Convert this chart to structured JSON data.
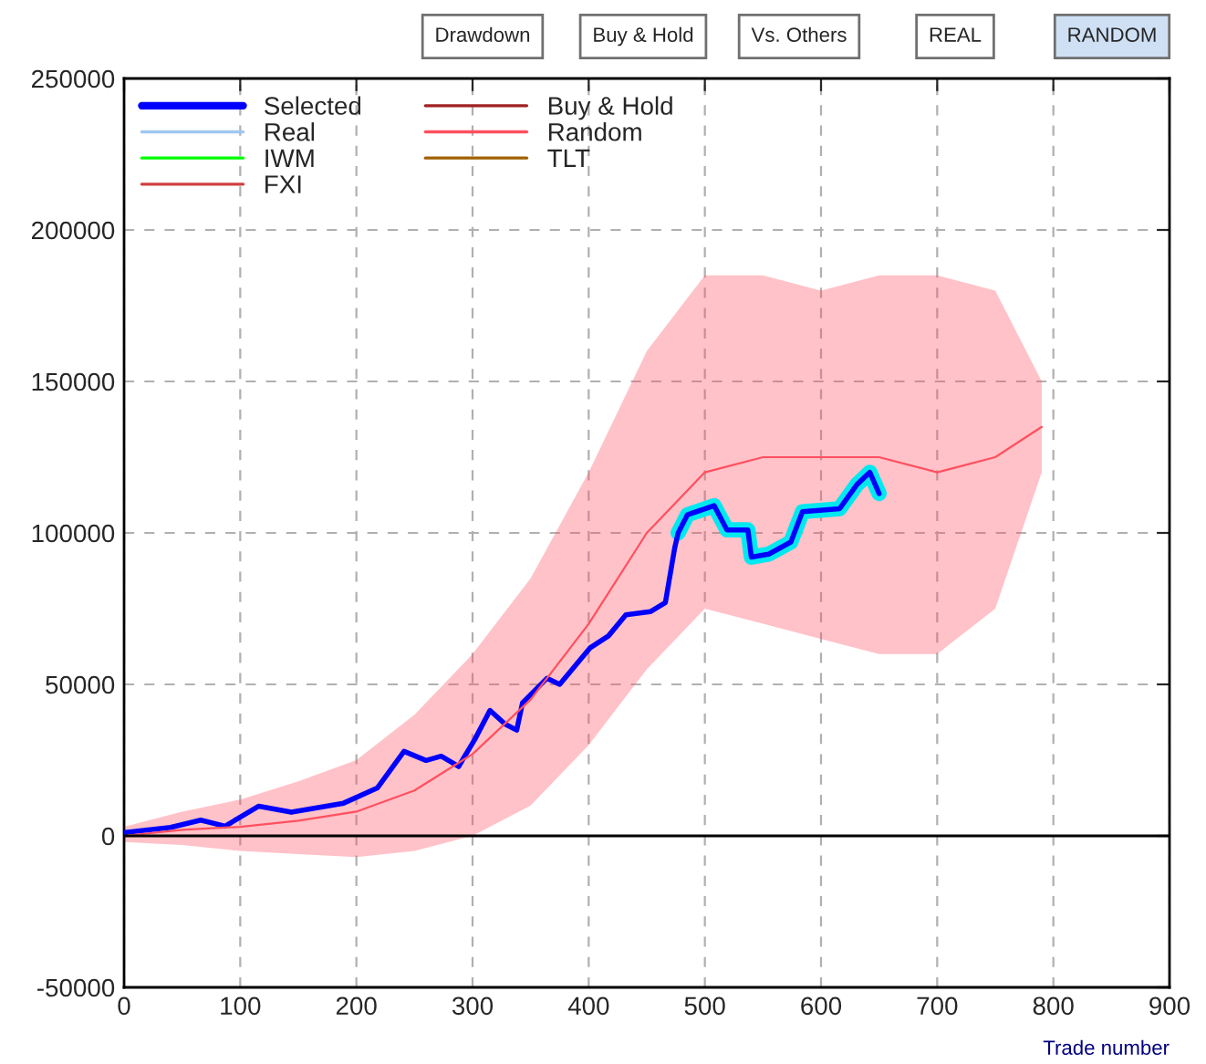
{
  "chart_data": {
    "type": "line",
    "xlabel": "Trade number",
    "annotations": [
      "Drawdown",
      "Buy & Hold",
      "Vs. Others",
      "REAL",
      "RANDOM"
    ],
    "xlim": [
      0,
      900
    ],
    "xticks": [
      0,
      100,
      200,
      300,
      400,
      500,
      600,
      700,
      800,
      900
    ],
    "ylim": [
      -50000,
      250000
    ],
    "yticks": [
      -50000,
      0,
      50000,
      100000,
      150000,
      200000,
      250000
    ],
    "grid": true,
    "legend": "top left",
    "ref_lines": [
      {
        "axis": "y",
        "value": 0,
        "color": "#000000",
        "line_style": "solid"
      }
    ],
    "series": [
      {
        "color": "#00e8f0",
        "x": [
          477,
          485,
          508,
          519,
          537,
          540,
          555,
          574,
          584,
          616,
          631,
          642,
          650
        ],
        "values": [
          100000,
          106000,
          109000,
          101000,
          101000,
          92000,
          93000,
          97000,
          107000,
          108000,
          116000,
          120000,
          113000
        ]
      },
      {
        "name": "Selected",
        "color": "#0000ff",
        "x": [
          0,
          3,
          40,
          66,
          87,
          116,
          144,
          189,
          218,
          241,
          260,
          273,
          288,
          302,
          315,
          328,
          338,
          343,
          364,
          375,
          401,
          417,
          432,
          453,
          466,
          474,
          477,
          485,
          508,
          519,
          537,
          540,
          555,
          574,
          584,
          616,
          631,
          642,
          650
        ],
        "values": [
          1000,
          1200,
          2800,
          5200,
          3200,
          9800,
          7800,
          10800,
          15800,
          27900,
          24900,
          26300,
          22900,
          31900,
          41400,
          36900,
          34900,
          43900,
          52000,
          50000,
          62000,
          66000,
          73000,
          74000,
          77000,
          95000,
          100000,
          106000,
          109000,
          101000,
          101000,
          92000,
          93000,
          97000,
          107000,
          108000,
          116000,
          120000,
          113000
        ]
      },
      {
        "name": "Real",
        "color": "#a0c8f0"
      },
      {
        "name": "IWM",
        "color": "#00ff00"
      },
      {
        "name": "FXI",
        "color": "#d04040"
      },
      {
        "name": "Buy & Hold",
        "color": "#a02020"
      },
      {
        "name": "Random",
        "color": "#ff5060",
        "x": [
          0,
          50,
          100,
          150,
          200,
          250,
          300,
          350,
          400,
          450,
          500,
          550,
          600,
          650,
          700,
          750,
          790
        ],
        "values": [
          0,
          2000,
          3000,
          5000,
          8000,
          15000,
          27000,
          45000,
          70000,
          100000,
          120000,
          125000,
          125000,
          125000,
          120000,
          125000,
          135000
        ],
        "lower": [
          -2000,
          -3000,
          -5000,
          -6000,
          -7000,
          -5000,
          0,
          10000,
          30000,
          55000,
          75000,
          70000,
          65000,
          60000,
          60000,
          75000,
          120000
        ],
        "upper": [
          3000,
          8000,
          12000,
          18000,
          25000,
          40000,
          60000,
          85000,
          120000,
          160000,
          185000,
          185000,
          180000,
          185000,
          185000,
          180000,
          150000
        ]
      },
      {
        "name": "TLT",
        "color": "#a06000"
      }
    ]
  }
}
